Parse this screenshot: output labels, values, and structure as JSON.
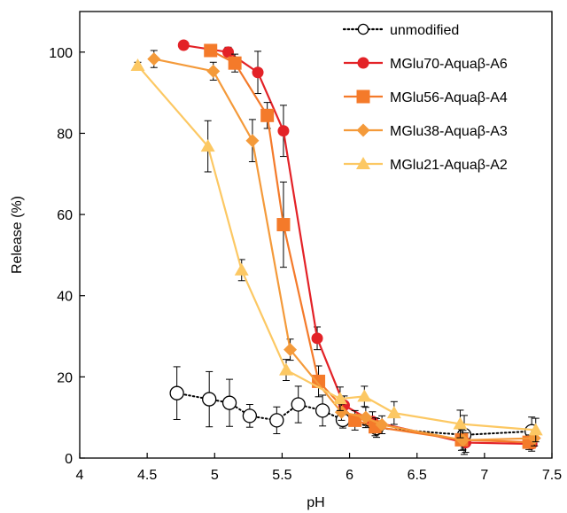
{
  "chart_data": {
    "type": "line",
    "xlabel": "pH",
    "ylabel": "Release (%)",
    "xlim": [
      4,
      7.5
    ],
    "ylim": [
      0,
      110
    ],
    "x_ticks": [
      4,
      4.5,
      5,
      5.5,
      6,
      6.5,
      7,
      7.5
    ],
    "x_tick_labels": [
      "4",
      "4.5",
      "5",
      "5.5",
      "6",
      "6.5",
      "7",
      "7.5"
    ],
    "y_ticks": [
      0,
      20,
      40,
      60,
      80,
      100
    ],
    "y_tick_labels": [
      "0",
      "20",
      "40",
      "60",
      "80",
      "100"
    ],
    "grid": false,
    "legend_position": "top-right",
    "series": [
      {
        "name": "unmodified",
        "color": "#000000",
        "marker": "circle-open",
        "line": "dotted",
        "x": [
          4.72,
          4.96,
          5.11,
          5.26,
          5.46,
          5.62,
          5.8,
          5.95,
          6.2,
          6.85,
          7.35
        ],
        "y": [
          16,
          14.5,
          13.6,
          10.4,
          9.3,
          13.2,
          11.7,
          9.4,
          7.4,
          5.7,
          6.6
        ],
        "err": [
          6.5,
          6.8,
          5.8,
          2.8,
          3.3,
          4.5,
          3.8,
          2,
          2.3,
          4.8,
          3.5
        ]
      },
      {
        "name": "MGlu70-Aquaβ-A6",
        "color": "#e32227",
        "marker": "circle",
        "line": "solid",
        "x": [
          4.77,
          5.1,
          5.32,
          5.51,
          5.76,
          5.96,
          6.17,
          6.86,
          7.35
        ],
        "y": [
          101.7,
          100,
          95,
          80.6,
          29.5,
          13,
          9,
          3.8,
          3.5
        ],
        "err": [
          0.8,
          1.2,
          5.2,
          6.3,
          2.8,
          2.3,
          2.4,
          2.4,
          1.8
        ]
      },
      {
        "name": "MGlu56-Aquaβ-A4",
        "color": "#f47a2a",
        "marker": "square",
        "line": "solid",
        "x": [
          4.97,
          5.15,
          5.39,
          5.51,
          5.77,
          6.04,
          6.19,
          6.83,
          7.33
        ],
        "y": [
          100.4,
          97.3,
          84.4,
          57.5,
          18.9,
          9.3,
          7.7,
          4.5,
          3.9
        ],
        "err": [
          1.4,
          2.2,
          3.2,
          10.5,
          3.8,
          2.4,
          2.2,
          2.6,
          1.8
        ]
      },
      {
        "name": "MGlu38-Aquaβ-A3",
        "color": "#f49a3a",
        "marker": "diamond",
        "line": "solid",
        "x": [
          4.55,
          4.99,
          5.28,
          5.56,
          5.94,
          6.12,
          6.24,
          6.84,
          7.37
        ],
        "y": [
          98.3,
          95.3,
          78.2,
          26.7,
          11.3,
          10,
          8.2,
          4.4,
          4.9
        ],
        "err": [
          2.1,
          2.2,
          5.2,
          2.6,
          2,
          2.5,
          2.2,
          2.4,
          1.9
        ]
      },
      {
        "name": "MGlu21-Aquaβ-A2",
        "color": "#fcc863",
        "marker": "triangle",
        "line": "solid",
        "x": [
          4.43,
          4.95,
          5.2,
          5.53,
          5.93,
          6.11,
          6.33,
          6.82,
          7.38
        ],
        "y": [
          96.7,
          76.8,
          46.3,
          21.7,
          14.6,
          15.2,
          11.1,
          8.4,
          6.9
        ],
        "err": [
          0.8,
          6.3,
          2.6,
          2.6,
          2.9,
          2.5,
          2.8,
          3.4,
          2.9
        ]
      }
    ]
  }
}
